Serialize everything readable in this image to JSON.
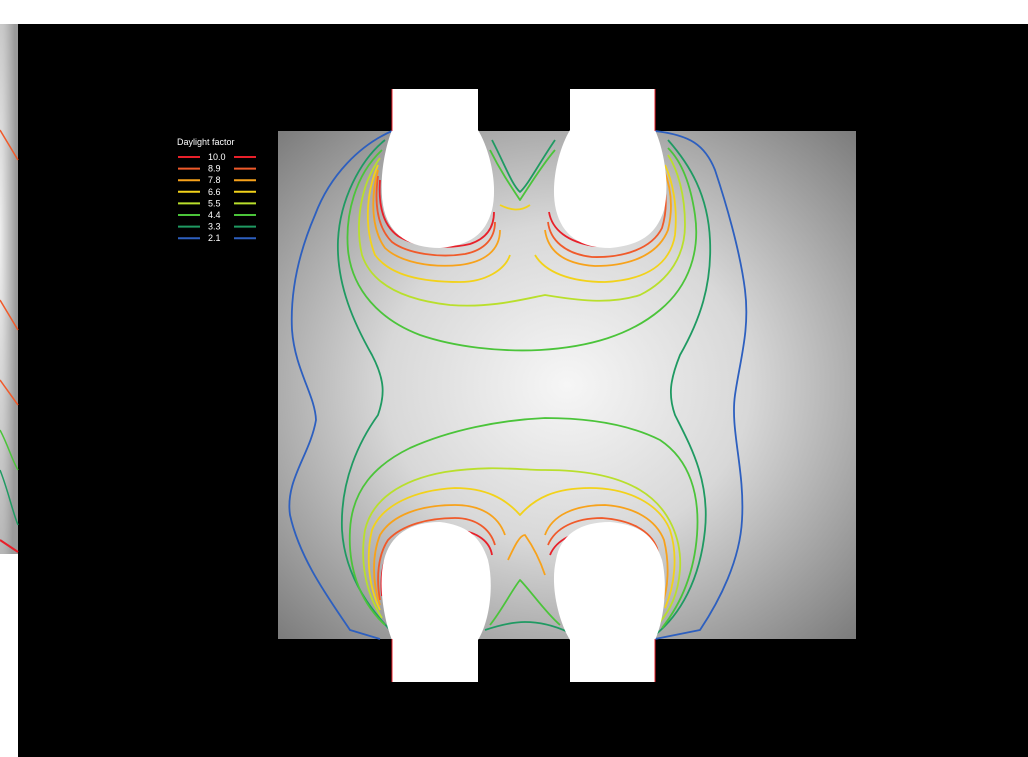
{
  "legend": {
    "title": "Daylight factor",
    "entries": [
      {
        "value": "10.0",
        "color": "#e8202a"
      },
      {
        "value": "8.9",
        "color": "#f05a2a"
      },
      {
        "value": "7.8",
        "color": "#f7a21b"
      },
      {
        "value": "6.6",
        "color": "#f2d21a"
      },
      {
        "value": "5.5",
        "color": "#b9df2c"
      },
      {
        "value": "4.4",
        "color": "#4bc43a"
      },
      {
        "value": "3.3",
        "color": "#1f9a62"
      },
      {
        "value": "2.1",
        "color": "#2d5fbf"
      }
    ]
  },
  "colors": {
    "background": "#000000",
    "floor_light": "#f4f4f4",
    "floor_dark": "#7a7a7a",
    "window": "#ffffff"
  },
  "windows": [
    "top-left",
    "top-right",
    "bottom-left",
    "bottom-right"
  ]
}
